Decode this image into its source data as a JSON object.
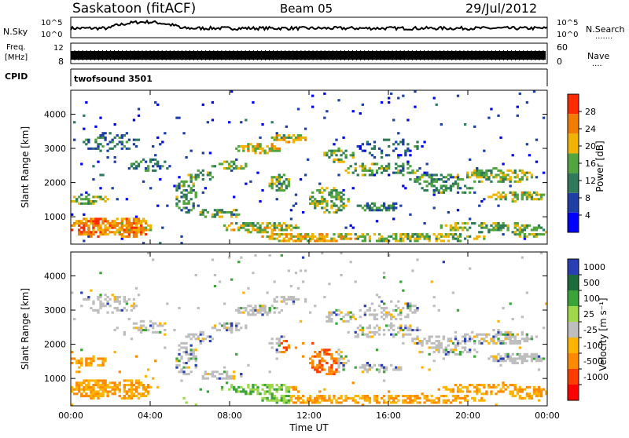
{
  "header": {
    "station": "Saskatoon (fitACF)",
    "beam": "Beam 05",
    "date": "29/Jul/2012"
  },
  "side_labels": {
    "nsky": "N.Sky",
    "freq_line1": "Freq.",
    "freq_line2": "[MHz]",
    "cpid": "CPID",
    "nsearch": "N.Search",
    "nsearch_dots": ".......",
    "nave": "Nave",
    "nave_dots": "...."
  },
  "panels": {
    "noise": {
      "left_ticks": [
        "10^5",
        "10^0"
      ],
      "right_ticks": [
        "10^5",
        "10^0"
      ]
    },
    "freq": {
      "left_ticks": [
        "12",
        "8"
      ],
      "right_ticks": [
        "60",
        "0"
      ]
    },
    "cpid": {
      "label": "twofsound 3501"
    }
  },
  "colors": {
    "power_scale": [
      "#0000ff",
      "#1d3fa6",
      "#2f7a5a",
      "#52a43e",
      "#f0b400",
      "#f07c00",
      "#ff2a00"
    ],
    "velocity_scale": [
      "#2a3fb5",
      "#1d6a3a",
      "#3aa33a",
      "#9fd84a",
      "#bebebe",
      "#ffb400",
      "#ff8a00",
      "#ff3c00",
      "#ff0000"
    ]
  },
  "chart_data": [
    {
      "type": "heatmap",
      "name": "power",
      "ylabel": "Slant Range [km]",
      "yticks": [
        1000,
        2000,
        3000,
        4000
      ],
      "ylim": [
        200,
        4700
      ],
      "xticks": [
        "00:00",
        "04:00",
        "08:00",
        "12:00",
        "16:00",
        "20:00",
        "00:00"
      ],
      "xlim_hours": [
        0,
        24
      ],
      "colorbar": {
        "label": "Power [dB]",
        "ticks": [
          "4",
          "8",
          "12",
          "16",
          "20",
          "24",
          "28"
        ],
        "range": [
          0,
          30
        ]
      }
    },
    {
      "type": "heatmap",
      "name": "velocity",
      "ylabel": "Slant Range [km]",
      "yticks": [
        1000,
        2000,
        3000,
        4000
      ],
      "ylim": [
        200,
        4700
      ],
      "xticks": [
        "00:00",
        "04:00",
        "08:00",
        "12:00",
        "16:00",
        "20:00",
        "00:00"
      ],
      "xlim_hours": [
        0,
        24
      ],
      "xlabel": "Time UT",
      "colorbar": {
        "label": "Velocity [m s⁻¹]",
        "ticks": [
          "1000",
          "500",
          "100",
          "25",
          "-25",
          "-100",
          "-500",
          "-1000"
        ]
      }
    }
  ]
}
